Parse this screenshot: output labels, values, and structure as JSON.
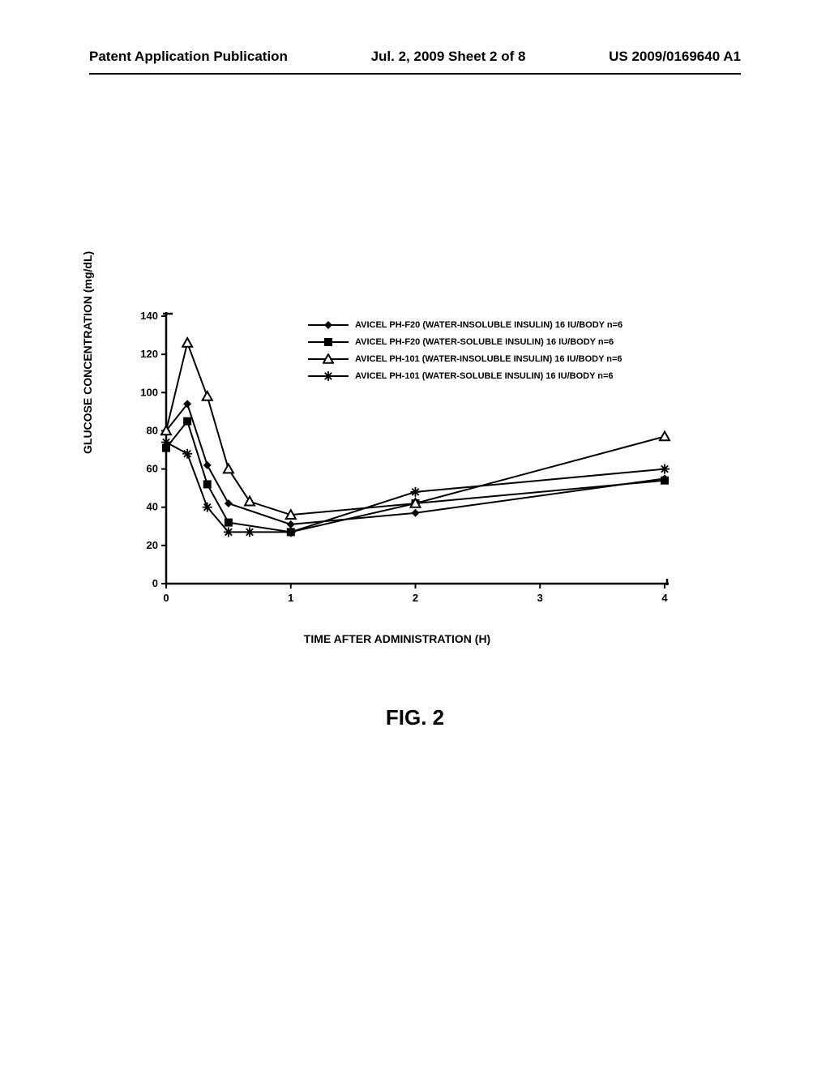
{
  "header": {
    "left": "Patent Application Publication",
    "center": "Jul. 2, 2009  Sheet 2 of 8",
    "right": "US 2009/0169640 A1"
  },
  "chart": {
    "type": "line",
    "y_axis_title": "GLUCOSE CONCENTRATION (mg/dL)",
    "x_axis_title": "TIME AFTER ADMINISTRATION (H)",
    "figure_caption": "FIG. 2",
    "ylim": [
      0,
      140
    ],
    "ytick_step": 20,
    "xlim": [
      0,
      4
    ],
    "xtick_step": 1,
    "yticks": [
      0,
      20,
      40,
      60,
      80,
      100,
      120,
      140
    ],
    "xticks": [
      0,
      1,
      2,
      3,
      4
    ],
    "background_color": "#ffffff",
    "axis_color": "#000000",
    "line_color": "#000000",
    "line_width": 2,
    "axis_width": 2.5,
    "tick_length": 6,
    "label_fontsize": 13,
    "title_fontsize": 14,
    "legend_fontsize": 11,
    "series": [
      {
        "label": "AVICEL PH-F20 (WATER-INSOLUBLE INSULIN) 16 IU/BODY  n=6",
        "marker": "diamond-filled",
        "x": [
          0,
          0.17,
          0.33,
          0.5,
          1,
          2,
          4
        ],
        "y": [
          80,
          94,
          62,
          42,
          31,
          37,
          55
        ]
      },
      {
        "label": "AVICEL PH-F20 (WATER-SOLUBLE INSULIN) 16 IU/BODY  n=6",
        "marker": "square-filled",
        "x": [
          0,
          0.17,
          0.33,
          0.5,
          1,
          2,
          4
        ],
        "y": [
          71,
          85,
          52,
          32,
          27,
          42,
          54
        ]
      },
      {
        "label": "AVICEL PH-101 (WATER-INSOLUBLE INSULIN) 16 IU/BODY  n=6",
        "marker": "triangle-open",
        "x": [
          0,
          0.17,
          0.33,
          0.5,
          0.67,
          1,
          2,
          4
        ],
        "y": [
          80,
          126,
          98,
          60,
          43,
          36,
          42,
          77
        ]
      },
      {
        "label": "AVICEL PH-101 (WATER-SOLUBLE INSULIN) 16 IU/BODY  n=6",
        "marker": "asterisk",
        "x": [
          0,
          0.17,
          0.33,
          0.5,
          0.67,
          1,
          2,
          4
        ],
        "y": [
          74,
          68,
          40,
          27,
          27,
          27,
          48,
          60
        ]
      }
    ]
  }
}
